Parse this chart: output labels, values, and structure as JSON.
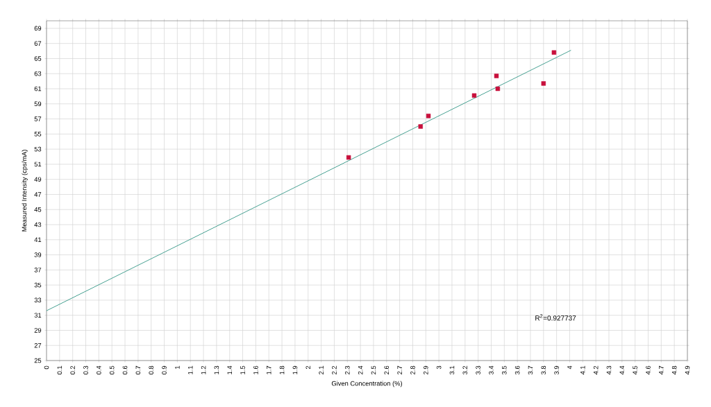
{
  "chart_data": {
    "type": "scatter",
    "xlabel": "Given Concentration (%)",
    "ylabel": "Measured Intensity (cps/mA)",
    "annotations": [
      "R$^{2}$=0.927737"
    ],
    "series": [
      {
        "color": "#c8103c",
        "marker": "square",
        "x": [
          2.31,
          2.86,
          2.92,
          3.27,
          3.44,
          3.45,
          3.8,
          3.88
        ],
        "values": [
          51.9,
          56.0,
          57.4,
          60.1,
          62.7,
          61.0,
          61.7,
          65.8
        ]
      },
      {
        "type": "line",
        "color": "#3a9a8a",
        "x": [
          0,
          4.01
        ],
        "values": [
          31.6,
          66.1
        ]
      }
    ],
    "xlim": [
      0,
      4.9
    ],
    "ylim": [
      25,
      70
    ],
    "xticks": [
      0,
      0.1,
      0.2,
      0.3,
      0.4,
      0.5,
      0.6,
      0.7,
      0.8,
      0.9,
      1,
      1.1,
      1.2,
      1.3,
      1.4,
      1.5,
      1.6,
      1.7,
      1.8,
      1.9,
      2,
      2.1,
      2.2,
      2.3,
      2.4,
      2.5,
      2.6,
      2.7,
      2.8,
      2.9,
      3,
      3.1,
      3.2,
      3.3,
      3.4,
      3.5,
      3.6,
      3.7,
      3.8,
      3.9,
      4,
      4.1,
      4.2,
      4.3,
      4.4,
      4.5,
      4.6,
      4.7,
      4.8,
      4.9
    ],
    "yticks": [
      25,
      27,
      29,
      31,
      33,
      35,
      37,
      39,
      41,
      43,
      45,
      47,
      49,
      51,
      53,
      55,
      57,
      59,
      61,
      63,
      65,
      67,
      69
    ],
    "grid": true
  }
}
